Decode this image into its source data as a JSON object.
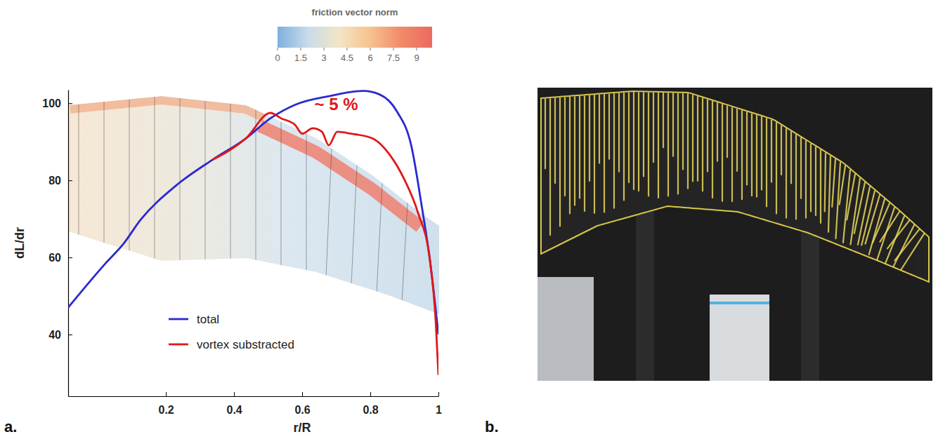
{
  "chart_data": {
    "type": "line",
    "x_label": "r/R",
    "y_label": "dL/dr",
    "xlim": [
      -0.087,
      1.0
    ],
    "ylim": [
      24,
      103.5
    ],
    "xticks": [
      0.2,
      0.4,
      0.6,
      0.8,
      1
    ],
    "yticks": [
      40,
      60,
      80,
      100
    ],
    "grid": false,
    "legend": "lower center",
    "series": [
      {
        "name": "total",
        "color": "#2a2ad0",
        "x": [
          -0.087,
          0.023,
          0.075,
          0.126,
          0.229,
          0.336,
          0.435,
          0.507,
          0.579,
          0.682,
          0.779,
          0.827,
          0.878,
          0.92,
          0.951,
          0.975,
          1.0
        ],
        "values": [
          47,
          58.5,
          63.5,
          69.8,
          78.6,
          85.3,
          90.9,
          96.1,
          99.6,
          101.9,
          103.2,
          102.3,
          97.9,
          89.1,
          73.3,
          59.3,
          40
        ]
      },
      {
        "name": "vortex substracted",
        "color": "#e01818",
        "x": [
          0.336,
          0.435,
          0.507,
          0.538,
          0.579,
          0.6,
          0.631,
          0.658,
          0.678,
          0.703,
          0.744,
          0.806,
          0.858,
          0.899,
          0.94,
          0.975,
          0.992,
          1.0
        ],
        "values": [
          85.3,
          90.9,
          97.5,
          96.1,
          94.4,
          92.1,
          93.5,
          92.6,
          89.1,
          92.6,
          92.1,
          90.9,
          86.5,
          80.4,
          71.6,
          59.3,
          43.5,
          29.5
        ]
      }
    ],
    "annotations": [
      {
        "text": "~ 5 %",
        "x": 0.7,
        "y": 98.3,
        "color": "#e01818"
      }
    ],
    "colorbar": {
      "title": "friction vector norm",
      "range": [
        0,
        10
      ],
      "ticks": [
        0,
        1.5,
        3,
        4.5,
        6,
        7.5,
        9
      ],
      "colors": [
        "#7fb0dc",
        "#c9dcea",
        "#f2e6c4",
        "#f6c28e",
        "#f08a6a",
        "#ec6a5e"
      ]
    }
  },
  "panel_labels": [
    "a.",
    "b."
  ]
}
